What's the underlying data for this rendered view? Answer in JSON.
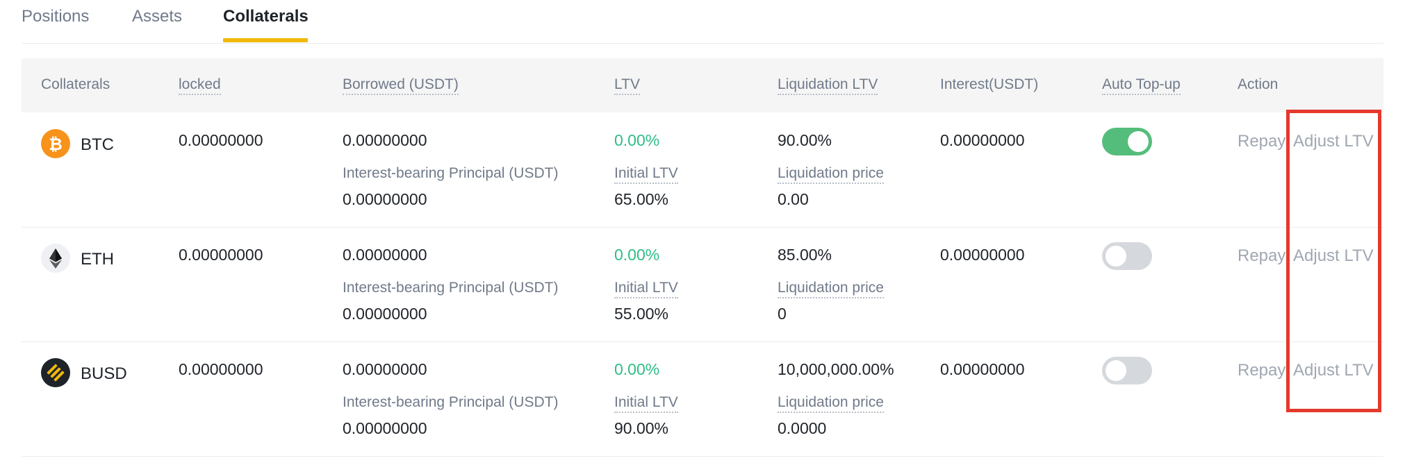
{
  "tabs": [
    {
      "label": "Positions"
    },
    {
      "label": "Assets"
    },
    {
      "label": "Collaterals"
    }
  ],
  "active_tab": "Collaterals",
  "columns": {
    "collaterals": "Collaterals",
    "locked": "locked",
    "borrowed": "Borrowed (USDT)",
    "ltv": "LTV",
    "liquidation_ltv": "Liquidation LTV",
    "interest": "Interest(USDT)",
    "auto_topup": "Auto Top-up",
    "action": "Action"
  },
  "labels": {
    "interest_principal": "Interest-bearing Principal (USDT)",
    "initial_ltv": "Initial LTV",
    "liquidation_price": "Liquidation price",
    "repay": "Repay",
    "adjust_ltv": "Adjust LTV"
  },
  "rows": [
    {
      "coin": "BTC",
      "icon": "btc-icon",
      "locked": "0.00000000",
      "borrowed": "0.00000000",
      "principal": "0.00000000",
      "ltv": "0.00%",
      "initial_ltv": "65.00%",
      "liquidation_ltv": "90.00%",
      "liquidation_price": "0.00",
      "interest": "0.00000000",
      "auto_topup": true
    },
    {
      "coin": "ETH",
      "icon": "eth-icon",
      "locked": "0.00000000",
      "borrowed": "0.00000000",
      "principal": "0.00000000",
      "ltv": "0.00%",
      "initial_ltv": "55.00%",
      "liquidation_ltv": "85.00%",
      "liquidation_price": "0",
      "interest": "0.00000000",
      "auto_topup": false
    },
    {
      "coin": "BUSD",
      "icon": "busd-icon",
      "locked": "0.00000000",
      "borrowed": "0.00000000",
      "principal": "0.00000000",
      "ltv": "0.00%",
      "initial_ltv": "90.00%",
      "liquidation_ltv": "10,000,000.00%",
      "liquidation_price": "0.0000",
      "interest": "0.00000000",
      "auto_topup": false
    }
  ],
  "colors": {
    "accent": "#f0b90b",
    "positive": "#2ebd85",
    "toggle_on": "#55bd7b",
    "toggle_off": "#d5d8dc",
    "highlight": "#e5392d"
  }
}
